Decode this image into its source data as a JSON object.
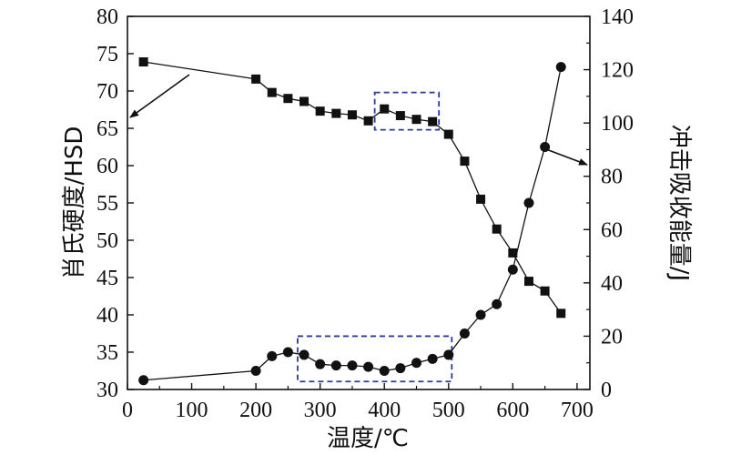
{
  "chart_data": {
    "type": "line",
    "xlabel": "温度/℃",
    "ylabel_left": "肖氏硬度/HSD",
    "ylabel_right": "冲击吸收能量/J",
    "x_ticks": [
      0,
      100,
      200,
      300,
      400,
      500,
      600,
      700
    ],
    "y_left_ticks": [
      30,
      35,
      40,
      45,
      50,
      55,
      60,
      65,
      70,
      75,
      80
    ],
    "y_right_ticks": [
      0,
      20,
      40,
      60,
      80,
      100,
      120,
      140
    ],
    "xlim": [
      0,
      720
    ],
    "ylim_left": [
      30,
      80
    ],
    "ylim_right": [
      0,
      140
    ],
    "grid": false,
    "series": [
      {
        "axis": "left",
        "marker": "square",
        "x": [
          25,
          200,
          225,
          250,
          275,
          300,
          325,
          350,
          375,
          400,
          425,
          450,
          475,
          500,
          525,
          550,
          575,
          600,
          625,
          650,
          675
        ],
        "y": [
          73.9,
          71.6,
          69.8,
          69.0,
          68.6,
          67.3,
          67.0,
          66.8,
          66.0,
          67.6,
          66.7,
          66.2,
          65.9,
          64.2,
          60.6,
          55.5,
          51.5,
          48.3,
          44.5,
          43.2,
          40.2
        ]
      },
      {
        "axis": "right",
        "marker": "circle",
        "x": [
          25,
          200,
          225,
          250,
          275,
          300,
          325,
          350,
          375,
          400,
          425,
          450,
          475,
          500,
          525,
          550,
          575,
          600,
          625,
          650,
          675
        ],
        "y": [
          3.5,
          7.0,
          12.5,
          14.0,
          13.0,
          9.5,
          9.0,
          9.0,
          8.5,
          7.0,
          8.0,
          10.0,
          11.5,
          13.0,
          21.0,
          28.0,
          32.0,
          45.0,
          70.0,
          91.0,
          121.0
        ]
      }
    ],
    "highlights": [
      {
        "axis": "left",
        "x": [
          385,
          485
        ],
        "y": [
          64.8,
          69.8
        ]
      },
      {
        "axis": "right",
        "x": [
          265,
          505
        ],
        "y": [
          3.0,
          20.0
        ]
      }
    ],
    "colors": {
      "data": "#111111",
      "highlight_box": "#2b3a9a"
    }
  }
}
